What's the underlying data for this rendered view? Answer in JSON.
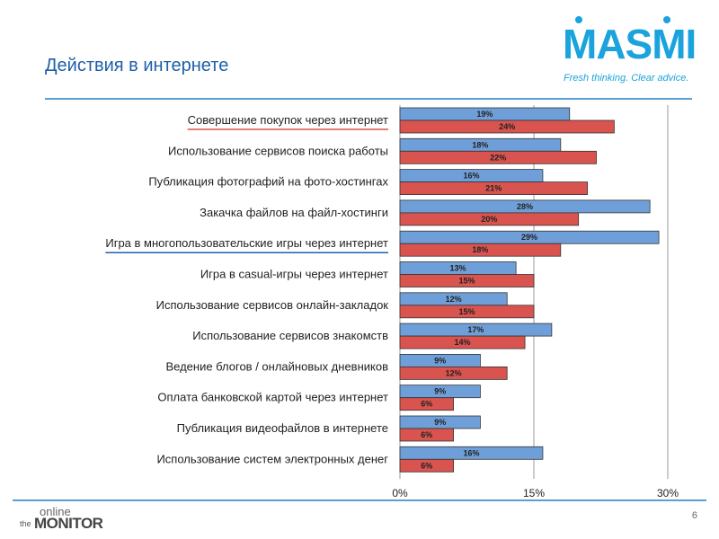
{
  "slide": {
    "title": "Действия в интернете",
    "page_number": "6"
  },
  "brand": {
    "name": "MASMI",
    "tagline": "Fresh thinking. Clear advice.",
    "color": "#1aa3dc"
  },
  "footer_logo": {
    "line1": "online",
    "prefix": "the",
    "word": "MONITOR"
  },
  "chart_data": {
    "type": "bar",
    "orientation": "horizontal",
    "categories": [
      "Совершение покупок через  интернет",
      "Использование сервисов поиска работы",
      "Публикация фотографий на фото-хостингах",
      "Закачка файлов на файл-хостинги",
      "Игра в многопользовательские игры через интернет",
      "Игра в  casual-игры через интернет",
      "Использование сервисов онлайн-закладок",
      "Использование сервисов знакомств",
      "Ведение блогов / онлайновых дневников",
      "Оплата банковской картой через интернет",
      "Публикация видеофайлов в интернете",
      "Использование систем электронных денег"
    ],
    "series": [
      {
        "color": "#6f9fd8",
        "values": [
          19,
          18,
          16,
          28,
          29,
          13,
          12,
          17,
          9,
          9,
          9,
          16
        ],
        "labels": [
          "19%",
          "18%",
          "16%",
          "28%",
          "29%",
          "13%",
          "12%",
          "17%",
          "9%",
          "9%",
          "9%",
          "16%"
        ]
      },
      {
        "color": "#d9534f",
        "values": [
          24,
          22,
          21,
          20,
          18,
          15,
          15,
          14,
          12,
          6,
          6,
          6
        ],
        "labels": [
          "24%",
          "22%",
          "21%",
          "20%",
          "18%",
          "15%",
          "15%",
          "14%",
          "12%",
          "6%",
          "6%",
          "6%"
        ]
      }
    ],
    "xlim": [
      0,
      30
    ],
    "xticks": [
      "0%",
      "15%",
      "30%"
    ],
    "highlighted_categories": [
      0,
      4
    ],
    "grid": "vertical lines at ticks"
  }
}
